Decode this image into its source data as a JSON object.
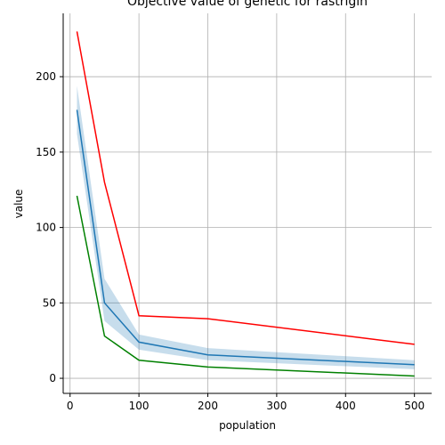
{
  "chart_data": {
    "type": "line",
    "title": "Objective value of genetic for rastrigin",
    "xlabel": "population",
    "ylabel": "value",
    "xlim": [
      -10,
      525
    ],
    "ylim": [
      -10,
      242
    ],
    "xticks": [
      0,
      100,
      200,
      300,
      400,
      500
    ],
    "yticks": [
      0,
      50,
      100,
      150,
      200
    ],
    "grid": true,
    "x": [
      10,
      50,
      100,
      200,
      500
    ],
    "series": [
      {
        "color": "#ff0000",
        "values": [
          230,
          130,
          41.5,
          39.5,
          22.5
        ]
      },
      {
        "color": "#1f77b4",
        "values": [
          178,
          50,
          24,
          15.5,
          9
        ],
        "band_low": [
          162,
          38,
          19,
          12,
          6
        ],
        "band_high": [
          194,
          66,
          29,
          20,
          12
        ],
        "band_color": "#1f77b4"
      },
      {
        "color": "#008000",
        "values": [
          121,
          28,
          12,
          7.5,
          1.5
        ]
      }
    ]
  }
}
